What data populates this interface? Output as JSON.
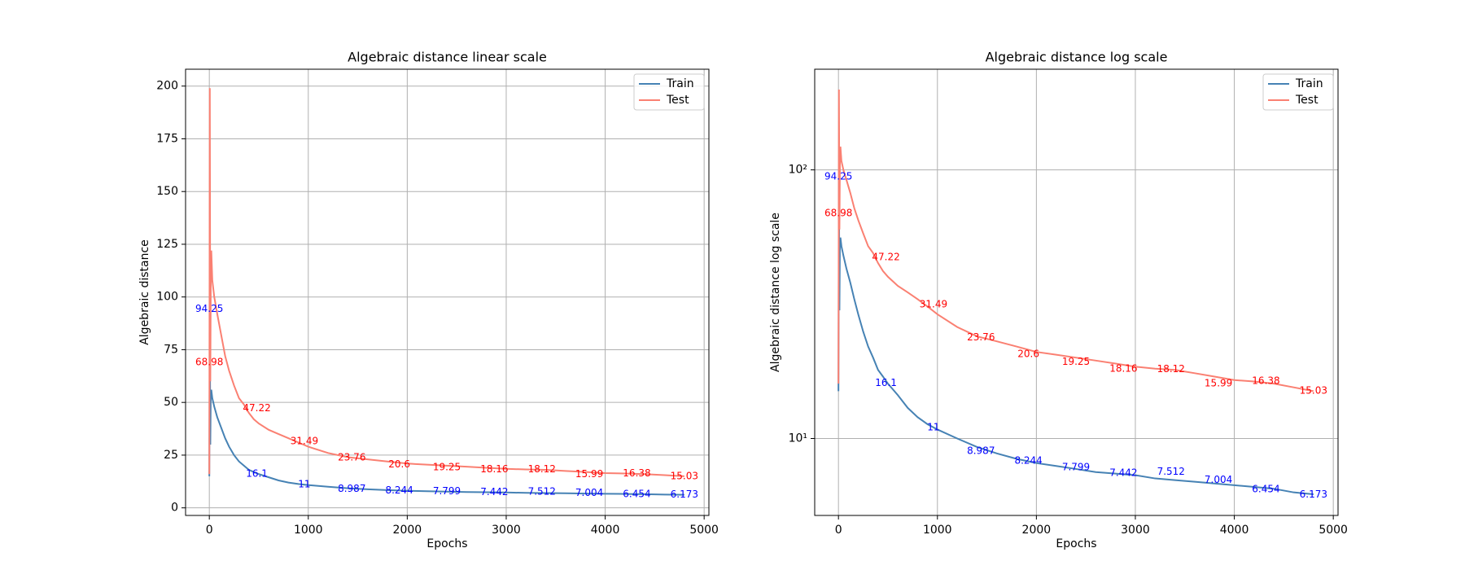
{
  "chart_data": [
    {
      "type": "line",
      "title": "Algebraic distance linear scale",
      "x_label": "Epochs",
      "y_label": "Algebraic distance",
      "log_y": false,
      "grid": true,
      "legend": "upper right",
      "xlim": [
        -240,
        5048
      ],
      "ylim": [
        -3.6,
        208
      ],
      "xticks": [
        0,
        1000,
        2000,
        3000,
        4000,
        5000
      ],
      "yticks": [
        0,
        25,
        50,
        75,
        100,
        125,
        150,
        175,
        200
      ],
      "x": [
        0,
        5,
        10,
        15,
        20,
        30,
        50,
        80,
        120,
        160,
        200,
        250,
        300,
        350,
        400,
        450,
        500,
        600,
        700,
        800,
        900,
        1000,
        1200,
        1400,
        1600,
        1800,
        2000,
        2200,
        2400,
        2600,
        2800,
        3000,
        3200,
        3400,
        3600,
        3800,
        4000,
        4200,
        4400,
        4600,
        4800
      ],
      "series": [
        {
          "name": "Train",
          "color": "#4682b4",
          "values": [
            15,
            94,
            30,
            55,
            56,
            52,
            48,
            43,
            38,
            33,
            29,
            25,
            22,
            20,
            18,
            17,
            16,
            14.5,
            13,
            12,
            11.3,
            10.8,
            10,
            9.3,
            8.8,
            8.4,
            8.1,
            7.9,
            7.7,
            7.5,
            7.4,
            7.3,
            7.1,
            7.0,
            6.9,
            6.8,
            6.7,
            6.6,
            6.5,
            6.3,
            6.2
          ],
          "label_color": "#0000ff",
          "label_x": [
            0,
            480,
            960,
            1440,
            1920,
            2400,
            2880,
            3360,
            3840,
            4320,
            4800
          ],
          "labels": [
            94.25,
            16.1,
            11,
            8.987,
            8.244,
            7.799,
            7.442,
            7.512,
            7.004,
            6.454,
            6.173
          ]
        },
        {
          "name": "Test",
          "color": "#fa8072",
          "values": [
            16,
            199,
            60,
            110,
            122,
            108,
            100,
            92,
            82,
            72,
            65,
            58,
            52,
            49,
            45,
            42,
            40,
            37,
            35,
            33,
            31,
            29,
            26,
            24,
            23,
            22,
            21,
            20.5,
            20,
            19.5,
            19,
            18.5,
            18.2,
            18,
            17.5,
            17,
            16.5,
            16.3,
            16,
            15.5,
            15
          ],
          "label_color": "#ff0000",
          "label_x": [
            0,
            480,
            960,
            1440,
            1920,
            2400,
            2880,
            3360,
            3840,
            4320,
            4800
          ],
          "labels": [
            68.98,
            47.22,
            31.49,
            23.76,
            20.6,
            19.25,
            18.16,
            18.12,
            15.99,
            16.38,
            15.03
          ]
        }
      ]
    },
    {
      "type": "line",
      "title": "Algebraic distance log scale",
      "x_label": "Epochs",
      "y_label": "Algebraic distance log scale",
      "log_y": true,
      "grid": true,
      "legend": "upper right",
      "xlim": [
        -240,
        5048
      ],
      "ylim": [
        5.17,
        237
      ],
      "xticks": [
        0,
        1000,
        2000,
        3000,
        4000,
        5000
      ],
      "yticks": [
        {
          "value": 10,
          "label": "10¹"
        },
        {
          "value": 100,
          "label": "10²"
        }
      ],
      "x": [
        0,
        5,
        10,
        15,
        20,
        30,
        50,
        80,
        120,
        160,
        200,
        250,
        300,
        350,
        400,
        450,
        500,
        600,
        700,
        800,
        900,
        1000,
        1200,
        1400,
        1600,
        1800,
        2000,
        2200,
        2400,
        2600,
        2800,
        3000,
        3200,
        3400,
        3600,
        3800,
        4000,
        4200,
        4400,
        4600,
        4800
      ],
      "series": [
        {
          "name": "Train",
          "color": "#4682b4",
          "values": [
            15,
            94,
            30,
            55,
            56,
            52,
            48,
            43,
            38,
            33,
            29,
            25,
            22,
            20,
            18,
            17,
            16,
            14.5,
            13,
            12,
            11.3,
            10.8,
            10,
            9.3,
            8.8,
            8.4,
            8.1,
            7.9,
            7.7,
            7.5,
            7.4,
            7.3,
            7.1,
            7.0,
            6.9,
            6.8,
            6.7,
            6.6,
            6.5,
            6.3,
            6.2
          ],
          "label_color": "#0000ff",
          "label_x": [
            0,
            480,
            960,
            1440,
            1920,
            2400,
            2880,
            3360,
            3840,
            4320,
            4800
          ],
          "labels": [
            94.25,
            16.1,
            11,
            8.987,
            8.244,
            7.799,
            7.442,
            7.512,
            7.004,
            6.454,
            6.173
          ]
        },
        {
          "name": "Test",
          "color": "#fa8072",
          "values": [
            16,
            199,
            60,
            110,
            122,
            108,
            100,
            92,
            82,
            72,
            65,
            58,
            52,
            49,
            45,
            42,
            40,
            37,
            35,
            33,
            31,
            29,
            26,
            24,
            23,
            22,
            21,
            20.5,
            20,
            19.5,
            19,
            18.5,
            18.2,
            18,
            17.5,
            17,
            16.5,
            16.3,
            16,
            15.5,
            15
          ],
          "label_color": "#ff0000",
          "label_x": [
            0,
            480,
            960,
            1440,
            1920,
            2400,
            2880,
            3360,
            3840,
            4320,
            4800
          ],
          "labels": [
            68.98,
            47.22,
            31.49,
            23.76,
            20.6,
            19.25,
            18.16,
            18.12,
            15.99,
            16.38,
            15.03
          ]
        }
      ]
    }
  ]
}
